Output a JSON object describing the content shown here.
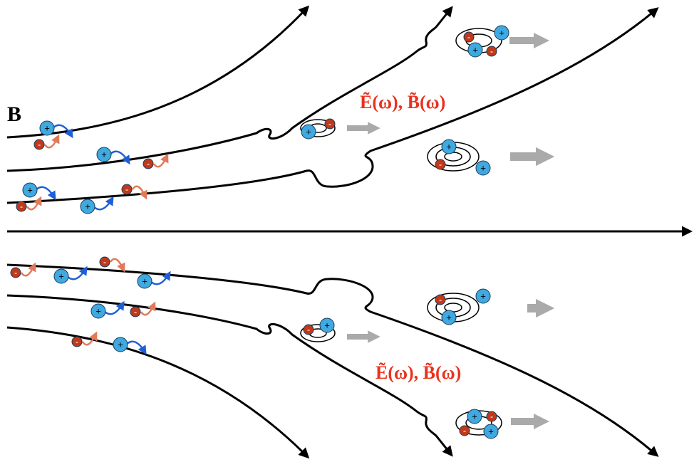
{
  "axis_label": "B",
  "field_labels": [
    "Ẽ(ω), B̃(ω)",
    "Ẽ(ω), B̃(ω)"
  ],
  "charges": {
    "positive": "+",
    "negative": "-"
  }
}
